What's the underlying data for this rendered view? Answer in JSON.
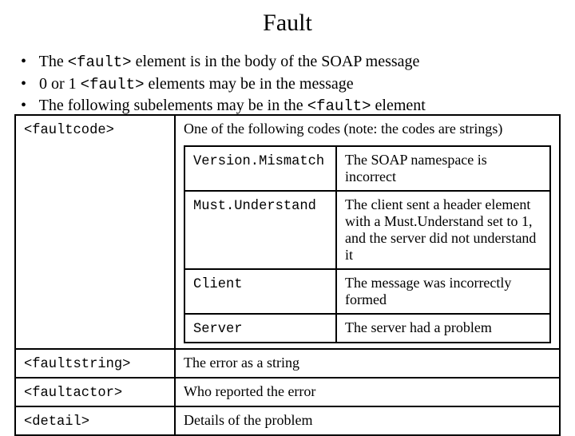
{
  "title": "Fault",
  "bullets": {
    "b1_pre": "The ",
    "b1_code": "<fault>",
    "b1_post": " element is in the body of the SOAP message",
    "b2_pre": "0 or 1 ",
    "b2_code": "<fault>",
    "b2_post": " elements may be in the message",
    "b3_pre": "The following subelements may be in the ",
    "b3_code": "<fault>",
    "b3_post": " element"
  },
  "rows": {
    "faultcode": {
      "label": "<faultcode>",
      "desc": "One of the following codes (note: the codes are  strings)"
    },
    "codes": {
      "vm": {
        "name": "Version.Mismatch",
        "desc": "The SOAP namespace is incorrect"
      },
      "mu": {
        "name": "Must.Understand",
        "desc": "The client sent a header element with a Must.Understand set to 1, and the server did not understand it"
      },
      "client": {
        "name": "Client",
        "desc": "The message was incorrectly formed"
      },
      "server": {
        "name": "Server",
        "desc": "The server had a problem"
      }
    },
    "faultstring": {
      "label": "<faultstring>",
      "desc": "The error as a string"
    },
    "faultactor": {
      "label": "<faultactor>",
      "desc": "Who reported the error"
    },
    "detail": {
      "label": "<detail>",
      "desc": "Details of the problem"
    }
  }
}
